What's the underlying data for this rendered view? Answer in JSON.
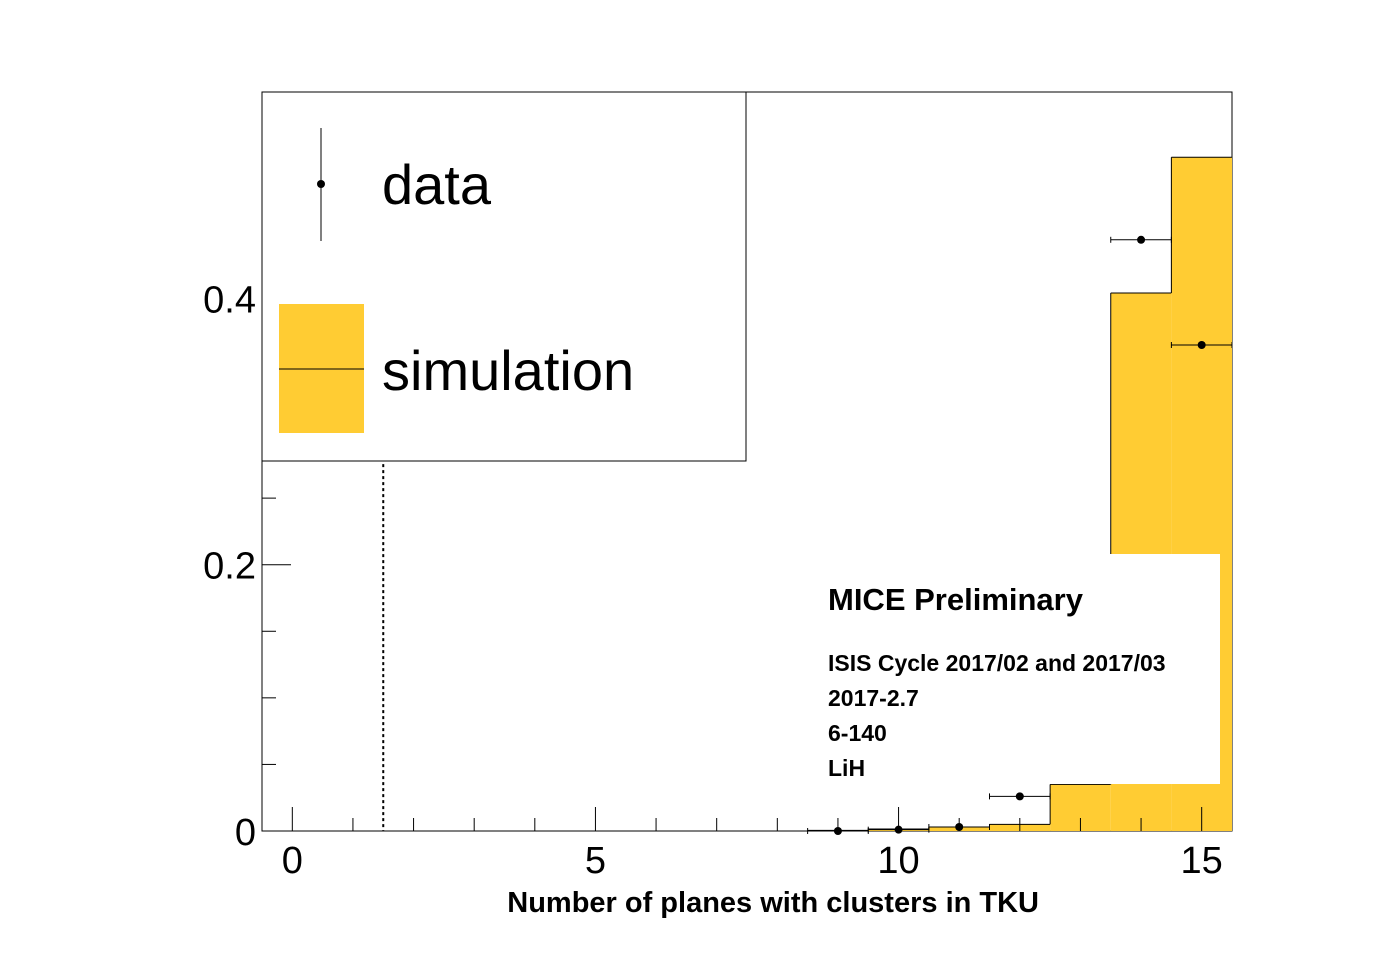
{
  "chart_data": {
    "type": "bar",
    "xlabel": "Number of planes with clusters in TKU",
    "ylabel": "",
    "xlim": [
      -0.5,
      15.5
    ],
    "ylim": [
      0,
      0.555
    ],
    "x_ticks": [
      0,
      5,
      10,
      15
    ],
    "y_ticks": [
      0,
      0.2,
      0.4
    ],
    "x_tick_labels": [
      "0",
      "5",
      "10",
      "15"
    ],
    "y_tick_labels": [
      "0",
      "0.2",
      "0.4"
    ],
    "legend": {
      "placement": "top-left",
      "entries": [
        "data",
        "simulation"
      ]
    },
    "series": [
      {
        "name": "simulation",
        "style": "filled histogram",
        "color": "#ffcc33",
        "bins": [
          9,
          10,
          11,
          12,
          13,
          14,
          15
        ],
        "values": [
          0.0005,
          0.0015,
          0.003,
          0.005,
          0.035,
          0.404,
          0.506
        ]
      },
      {
        "name": "data",
        "style": "markers with error bars",
        "color": "#000000",
        "x": [
          9,
          10,
          11,
          12,
          14,
          15
        ],
        "values": [
          0.0,
          0.001,
          0.003,
          0.026,
          0.444,
          0.365
        ]
      }
    ],
    "cut_line": {
      "x": 1.5,
      "style": "dotted"
    },
    "annotation": {
      "title": "MICE Preliminary",
      "lines": [
        "ISIS Cycle 2017/02 and 2017/03",
        "2017-2.7",
        "6-140",
        "LiH"
      ]
    }
  },
  "colors": {
    "simulation_fill": "#ffcc33",
    "data_marker": "#000000",
    "frame": "#000000",
    "background": "#ffffff"
  }
}
